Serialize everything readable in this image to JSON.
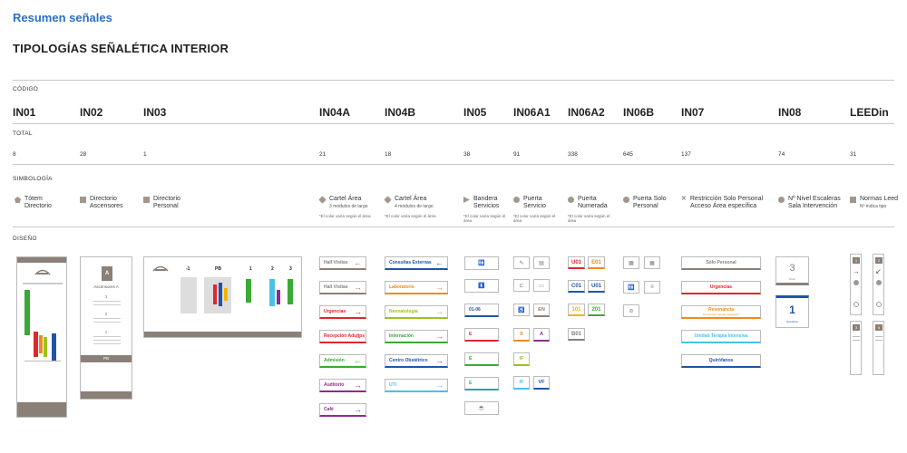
{
  "header": {
    "title": "Resumen señales",
    "subtitle": "TIPOLOGÍAS SEÑALÉTICA INTERIOR"
  },
  "labels": {
    "codigo": "CÓDIGO",
    "total": "TOTAL",
    "simbologia": "SIMBOLOGÍA",
    "diseno": "DISEÑO"
  },
  "codes": [
    "IN01",
    "IN02",
    "IN03",
    "IN04A",
    "IN04B",
    "IN05",
    "IN06A1",
    "IN06A2",
    "IN06B",
    "IN07",
    "IN08",
    "LEEDin"
  ],
  "totals": [
    "8",
    "28",
    "1",
    "21",
    "18",
    "38",
    "91",
    "338",
    "645",
    "137",
    "74",
    "31"
  ],
  "symbology": [
    {
      "line1": "Tótem",
      "line2": "Directorio",
      "note": ""
    },
    {
      "line1": "Directorio",
      "line2": "Ascensores",
      "note": ""
    },
    {
      "line1": "Directorio",
      "line2": "Personal",
      "note": ""
    },
    {
      "line1": "Cartel Área",
      "line2": "3 módulos de largo",
      "note": "*El color varía según el área"
    },
    {
      "line1": "Cartel Área",
      "line2": "4 módulos de largo",
      "note": "*El color varía según el área"
    },
    {
      "line1": "Bandera",
      "line2": "Servicios",
      "note": "*El color varía según el área"
    },
    {
      "line1": "Puerta",
      "line2": "Servicio",
      "note": "*El color varía según el área"
    },
    {
      "line1": "Puerta",
      "line2": "Numerada",
      "note": "*El color varía según el área"
    },
    {
      "line1": "Puerta Solo",
      "line2": "Personal",
      "note": ""
    },
    {
      "line1": "Restricción Solo Personal",
      "line2": "Acceso Área específica",
      "note": ""
    },
    {
      "line1": "Nº Nivel Escaleras",
      "line2": "Sala Intervención",
      "note": ""
    },
    {
      "line1": "Normas Leed",
      "line2": "Nº indica tipo",
      "note": ""
    }
  ],
  "colors": {
    "taupe": "#8a8078",
    "red": "#e0262f",
    "green": "#3aa935",
    "purple": "#8b2c90",
    "blue": "#2055a5",
    "orange": "#f08a1c",
    "lime": "#9bc31c",
    "teal": "#2ba8a0",
    "cyan": "#4cc0e8",
    "yellow": "#f2b400"
  },
  "in04a_signs": [
    {
      "label": "Hall Visitas",
      "arrow": "←",
      "color": "#8a8078"
    },
    {
      "label": "Hall Visitas",
      "arrow": "→",
      "color": "#8a8078"
    },
    {
      "label": "Urgencias",
      "arrow": "→",
      "color": "#e0262f"
    },
    {
      "label": "Recepción Adultos",
      "arrow": "→",
      "color": "#e0262f"
    },
    {
      "label": "Admisión",
      "arrow": "←",
      "color": "#3aa935"
    },
    {
      "label": "Auditorio",
      "arrow": "→",
      "color": "#8b2c90"
    },
    {
      "label": "Café",
      "arrow": "→",
      "color": "#8b2c90"
    }
  ],
  "in04b_signs": [
    {
      "label": "Consultas Externas",
      "arrow": "←",
      "color": "#2055a5"
    },
    {
      "label": "Laboratorio",
      "arrow": "→",
      "color": "#f08a1c"
    },
    {
      "label": "Neonatología",
      "arrow": "→",
      "color": "#9bc31c"
    },
    {
      "label": "Internación",
      "arrow": "→",
      "color": "#3aa935"
    },
    {
      "label": "Centro Obstétrico",
      "arrow": "→",
      "color": "#2055a5"
    },
    {
      "label": "UTI",
      "arrow": "→",
      "color": "#4cc0e8"
    }
  ],
  "in05_signs": [
    {
      "label": "01-06",
      "color": "#2055a5"
    },
    {
      "label": "E",
      "color": "#e0262f"
    },
    {
      "label": "E",
      "color": "#3aa935"
    },
    {
      "label": "E",
      "color": "#2ba8a0"
    }
  ],
  "in06a1_tiles": [
    {
      "t": "EN",
      "c": "#8a8078"
    },
    {
      "t": "S",
      "c": "#f08a1c"
    },
    {
      "t": "A",
      "c": "#8b2c90"
    },
    {
      "t": "IF",
      "c": "#9bc31c"
    },
    {
      "t": "IF",
      "c": "#4cc0e8"
    },
    {
      "t": "VF",
      "c": "#2055a5"
    }
  ],
  "in06a2_tiles": [
    {
      "t": "U01",
      "c": "#e0262f"
    },
    {
      "t": "E01",
      "c": "#f08a1c"
    },
    {
      "t": "C01",
      "c": "#2055a5"
    },
    {
      "t": "U01",
      "c": "#2055a5"
    },
    {
      "t": "101",
      "c": "#f2b400"
    },
    {
      "t": "201",
      "c": "#3aa935"
    },
    {
      "t": "B01",
      "c": "#8a8078"
    }
  ],
  "in07_signs": [
    {
      "label": "Sólo Personal",
      "sub": "",
      "color": "#8a8078"
    },
    {
      "label": "Urgencias",
      "sub": "",
      "color": "#e0262f"
    },
    {
      "label": "Resonancia",
      "sub": "Precaución campo magnético",
      "color": "#f08a1c"
    },
    {
      "label": "Unidad Terapia Intensiva",
      "sub": "",
      "color": "#4cc0e8"
    },
    {
      "label": "Quirófanos",
      "sub": "",
      "color": "#2055a5"
    }
  ],
  "in08": [
    {
      "num": "3",
      "cap": "Nivel",
      "color": "#8a8078"
    },
    {
      "num": "1",
      "cap": "Quirófano",
      "color": "#2055a5"
    }
  ],
  "in02": {
    "title": "Ascensores A",
    "footer": "PB",
    "floors": [
      "3",
      "2",
      "1"
    ]
  },
  "in03": {
    "floors": [
      "-1",
      "PB",
      "1",
      "2",
      "3"
    ]
  }
}
